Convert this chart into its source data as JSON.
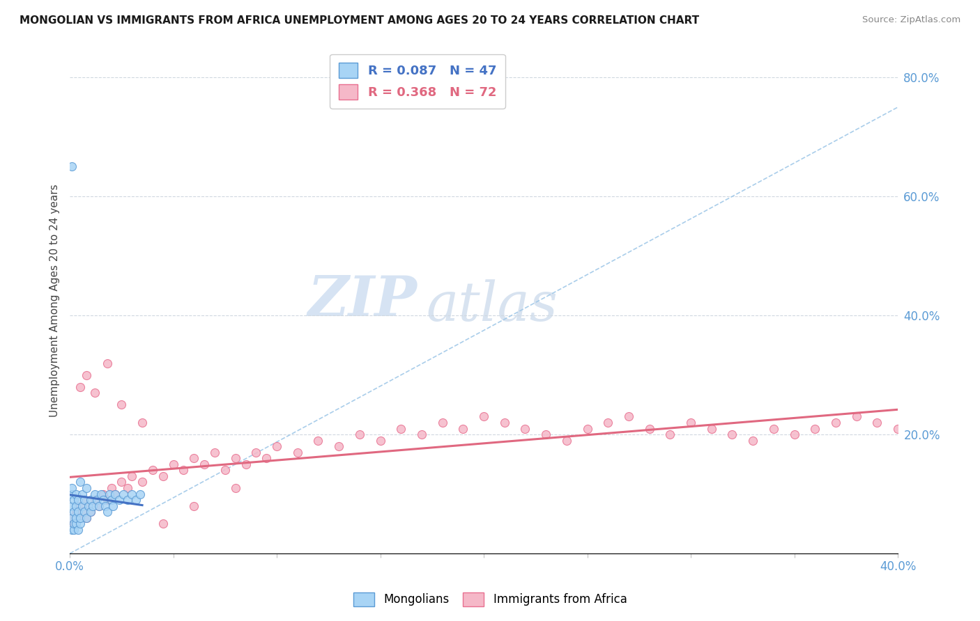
{
  "title": "MONGOLIAN VS IMMIGRANTS FROM AFRICA UNEMPLOYMENT AMONG AGES 20 TO 24 YEARS CORRELATION CHART",
  "source": "Source: ZipAtlas.com",
  "ylabel": "Unemployment Among Ages 20 to 24 years",
  "legend_mongolians": "Mongolians",
  "legend_africa": "Immigrants from Africa",
  "r_mongolian": "R = 0.087",
  "n_mongolian": "N = 47",
  "r_africa": "R = 0.368",
  "n_africa": "N = 72",
  "color_mongolian_fill": "#a8d4f5",
  "color_mongolian_edge": "#5b9bd5",
  "color_africa_fill": "#f5b8c8",
  "color_africa_edge": "#e87090",
  "color_mongolian_line": "#4472c4",
  "color_africa_line": "#e06880",
  "color_dashed": "#a0c8e8",
  "watermark_zip": "ZIP",
  "watermark_atlas": "atlas",
  "background_color": "#ffffff",
  "xlim": [
    0.0,
    0.4
  ],
  "ylim": [
    0.0,
    0.85
  ],
  "right_yticks": [
    0.2,
    0.4,
    0.6,
    0.8
  ],
  "right_yticklabels": [
    "20.0%",
    "40.0%",
    "60.0%",
    "80.0%"
  ],
  "mong_x": [
    0.001,
    0.001,
    0.001,
    0.001,
    0.001,
    0.002,
    0.002,
    0.002,
    0.002,
    0.003,
    0.003,
    0.003,
    0.003,
    0.004,
    0.004,
    0.004,
    0.005,
    0.005,
    0.005,
    0.006,
    0.006,
    0.007,
    0.007,
    0.008,
    0.008,
    0.009,
    0.01,
    0.01,
    0.011,
    0.012,
    0.013,
    0.014,
    0.015,
    0.016,
    0.017,
    0.018,
    0.019,
    0.02,
    0.021,
    0.022,
    0.024,
    0.026,
    0.028,
    0.03,
    0.032,
    0.034,
    0.001
  ],
  "mong_y": [
    0.04,
    0.06,
    0.08,
    0.1,
    0.11,
    0.04,
    0.05,
    0.07,
    0.09,
    0.05,
    0.06,
    0.08,
    0.1,
    0.04,
    0.07,
    0.09,
    0.05,
    0.06,
    0.12,
    0.08,
    0.1,
    0.07,
    0.09,
    0.06,
    0.11,
    0.08,
    0.07,
    0.09,
    0.08,
    0.1,
    0.09,
    0.08,
    0.1,
    0.09,
    0.08,
    0.07,
    0.1,
    0.09,
    0.08,
    0.1,
    0.09,
    0.1,
    0.09,
    0.1,
    0.09,
    0.1,
    0.65
  ],
  "afr_x": [
    0.001,
    0.002,
    0.003,
    0.004,
    0.005,
    0.006,
    0.007,
    0.008,
    0.009,
    0.01,
    0.012,
    0.014,
    0.016,
    0.018,
    0.02,
    0.022,
    0.025,
    0.028,
    0.03,
    0.035,
    0.04,
    0.045,
    0.05,
    0.055,
    0.06,
    0.065,
    0.07,
    0.075,
    0.08,
    0.085,
    0.09,
    0.095,
    0.1,
    0.11,
    0.12,
    0.13,
    0.14,
    0.15,
    0.16,
    0.17,
    0.18,
    0.19,
    0.2,
    0.21,
    0.22,
    0.23,
    0.24,
    0.25,
    0.26,
    0.27,
    0.28,
    0.29,
    0.3,
    0.31,
    0.32,
    0.33,
    0.34,
    0.35,
    0.36,
    0.37,
    0.38,
    0.39,
    0.4,
    0.005,
    0.008,
    0.012,
    0.018,
    0.025,
    0.035,
    0.045,
    0.06,
    0.08
  ],
  "afr_y": [
    0.06,
    0.05,
    0.07,
    0.06,
    0.08,
    0.07,
    0.09,
    0.06,
    0.08,
    0.07,
    0.09,
    0.08,
    0.1,
    0.09,
    0.11,
    0.1,
    0.12,
    0.11,
    0.13,
    0.12,
    0.14,
    0.13,
    0.15,
    0.14,
    0.16,
    0.15,
    0.17,
    0.14,
    0.16,
    0.15,
    0.17,
    0.16,
    0.18,
    0.17,
    0.19,
    0.18,
    0.2,
    0.19,
    0.21,
    0.2,
    0.22,
    0.21,
    0.23,
    0.22,
    0.21,
    0.2,
    0.19,
    0.21,
    0.22,
    0.23,
    0.21,
    0.2,
    0.22,
    0.21,
    0.2,
    0.19,
    0.21,
    0.2,
    0.21,
    0.22,
    0.23,
    0.22,
    0.21,
    0.28,
    0.3,
    0.27,
    0.32,
    0.25,
    0.22,
    0.05,
    0.08,
    0.11
  ]
}
